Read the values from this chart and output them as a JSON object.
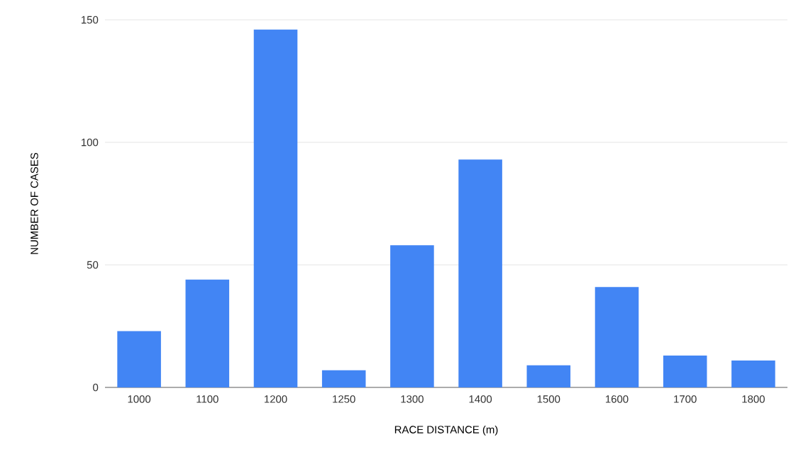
{
  "chart_data": {
    "type": "bar",
    "xlabel": "RACE DISTANCE (m)",
    "ylabel": "NUMBER OF CASES",
    "categories": [
      "1000",
      "1100",
      "1200",
      "1250",
      "1300",
      "1400",
      "1500",
      "1600",
      "1700",
      "1800"
    ],
    "values": [
      23,
      44,
      146,
      7,
      58,
      93,
      9,
      41,
      13,
      11
    ],
    "color": "#4285f4",
    "ylim": [
      0,
      150
    ],
    "yticks": [
      0,
      50,
      100,
      150
    ],
    "grid": "y"
  }
}
